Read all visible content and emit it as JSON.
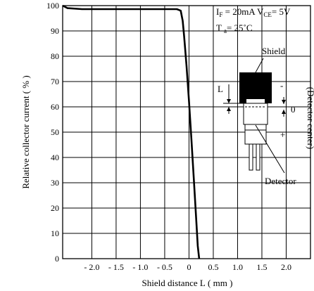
{
  "chart_data": {
    "type": "line",
    "xlabel": "Shield distance L ( mm )",
    "ylabel": "Relative collector current ( % )",
    "x_ticks": [
      "- 2.0",
      "- 1.5",
      "- 1.0",
      "- 0.5",
      "0",
      "0.5",
      "1.0",
      "1.5",
      "2.0"
    ],
    "x_tick_values": [
      -2.0,
      -1.5,
      -1.0,
      -0.5,
      0,
      0.5,
      1.0,
      1.5,
      2.0
    ],
    "y_ticks": [
      "0",
      "10",
      "20",
      "30",
      "40",
      "50",
      "60",
      "70",
      "80",
      "90",
      "100"
    ],
    "xlim": [
      -2.6,
      2.5
    ],
    "ylim": [
      0,
      100
    ],
    "grid": true,
    "series": [
      {
        "x": [
          -2.6,
          -2.5,
          -2.2,
          -1.5,
          -1.0,
          -0.5,
          -0.25,
          -0.17,
          -0.13,
          -0.1,
          -0.05,
          0.0,
          0.05,
          0.1,
          0.15,
          0.18,
          0.21
        ],
        "y": [
          100,
          99,
          98.6,
          98.6,
          98.6,
          98.6,
          98.6,
          98,
          94,
          88,
          76,
          62,
          47,
          31,
          15,
          5,
          0
        ]
      }
    ],
    "conditions": {
      "line1": {
        "I": "I",
        "I_sub": "F",
        "I_val": " = 20mA V",
        "V_sub": "CE",
        "V_val": "=  5V"
      },
      "line2": {
        "T": "T",
        "T_sub": "a",
        "T_val": "=  25˚C"
      }
    },
    "inset": {
      "shield": "Shield",
      "detector": "Detector",
      "L": "L",
      "minus": "-",
      "zero": "0",
      "plus": "+",
      "detector_center": "(Detector center)"
    }
  }
}
